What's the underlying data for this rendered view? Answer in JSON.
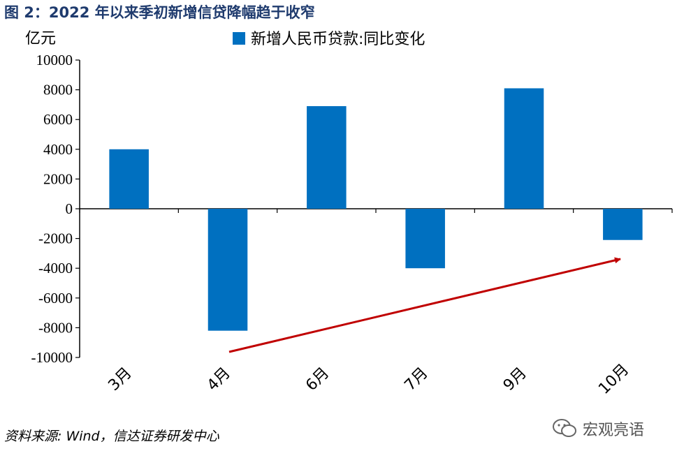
{
  "title": "图 2：2022 年以来季初新增信贷降幅趋于收窄",
  "source": "资料来源: Wind，信达证券研发中心",
  "watermark": "宏观亮语",
  "chart_data": {
    "type": "bar",
    "unit_label": "亿元",
    "categories": [
      "3月",
      "4月",
      "6月",
      "7月",
      "9月",
      "10月"
    ],
    "series": [
      {
        "name": "新增人民币贷款:同比变化",
        "color": "#0070c0",
        "values": [
          4000,
          -8200,
          6900,
          -4000,
          8100,
          -2100
        ]
      }
    ],
    "yticks": [
      10000,
      8000,
      6000,
      4000,
      2000,
      0,
      -2000,
      -4000,
      -6000,
      -8000,
      -10000
    ],
    "ylim": [
      -10000,
      10000
    ],
    "legend_position": "top",
    "annotation": {
      "type": "arrow",
      "color": "#c00000",
      "direction": "upward trend"
    }
  }
}
